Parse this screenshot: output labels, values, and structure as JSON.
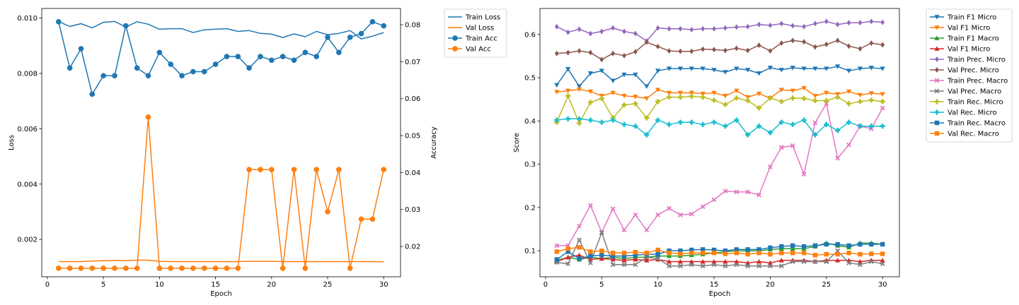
{
  "chart_data": [
    {
      "type": "line",
      "xlabel": "Epoch",
      "ylabel": "Loss",
      "ylabel_right": "Accuracy",
      "xlim": [
        -0.5,
        31.5
      ],
      "ylim": [
        0.00065,
        0.01035
      ],
      "ylim_right": [
        0.0118,
        0.0844
      ],
      "xticks": [
        0,
        5,
        10,
        15,
        20,
        25,
        30
      ],
      "yticks": [
        0.002,
        0.004,
        0.006,
        0.008,
        0.01
      ],
      "ytick_labels": [
        "0.002",
        "0.004",
        "0.006",
        "0.008",
        "0.010"
      ],
      "yticks_right": [
        0.02,
        0.03,
        0.04,
        0.05,
        0.06,
        0.07,
        0.08
      ],
      "ytick_labels_right": [
        "0.02",
        "0.03",
        "0.04",
        "0.05",
        "0.06",
        "0.07",
        "0.08"
      ],
      "legend_position": "outside-right",
      "x": [
        1,
        2,
        3,
        4,
        5,
        6,
        7,
        8,
        9,
        10,
        11,
        12,
        13,
        14,
        15,
        16,
        17,
        18,
        19,
        20,
        21,
        22,
        23,
        24,
        25,
        26,
        27,
        28,
        29,
        30
      ],
      "series": [
        {
          "name": "Train Loss",
          "axis": "left",
          "color": "#1f77b4",
          "marker": "none",
          "values": [
            0.00988,
            0.0097,
            0.0098,
            0.00965,
            0.00985,
            0.00988,
            0.00968,
            0.00987,
            0.00978,
            0.0096,
            0.00962,
            0.00962,
            0.00948,
            0.00958,
            0.0096,
            0.00962,
            0.00952,
            0.00955,
            0.00945,
            0.00942,
            0.0093,
            0.00943,
            0.00933,
            0.00952,
            0.0094,
            0.00945,
            0.00955,
            0.00925,
            0.00935,
            0.00948
          ]
        },
        {
          "name": "Val Loss",
          "axis": "left",
          "color": "#ff7f0e",
          "marker": "none",
          "values": [
            0.0012,
            0.0012,
            0.0012,
            0.00122,
            0.00123,
            0.00124,
            0.00123,
            0.00125,
            0.00125,
            0.00121,
            0.0012,
            0.0012,
            0.0012,
            0.0012,
            0.0012,
            0.0012,
            0.0012,
            0.00121,
            0.00121,
            0.00121,
            0.0012,
            0.0012,
            0.0012,
            0.0012,
            0.0012,
            0.0012,
            0.0012,
            0.0012,
            0.0012,
            0.00119
          ]
        },
        {
          "name": "Train Acc",
          "axis": "right",
          "color": "#1f77b4",
          "marker": "circle",
          "values": [
            0.0808,
            0.0683,
            0.0735,
            0.0612,
            0.0662,
            0.0662,
            0.0797,
            0.0683,
            0.0662,
            0.0725,
            0.0693,
            0.0662,
            0.0673,
            0.0673,
            0.0693,
            0.0714,
            0.0714,
            0.0683,
            0.0714,
            0.0704,
            0.0714,
            0.0704,
            0.0725,
            0.0714,
            0.0766,
            0.0725,
            0.0766,
            0.0776,
            0.0808,
            0.0797
          ]
        },
        {
          "name": "Val Acc",
          "axis": "right",
          "color": "#ff7f0e",
          "marker": "circle",
          "values": [
            0.0141,
            0.0141,
            0.0141,
            0.0141,
            0.0141,
            0.0141,
            0.0141,
            0.0141,
            0.055,
            0.0141,
            0.0141,
            0.0141,
            0.0141,
            0.0141,
            0.0141,
            0.0141,
            0.0141,
            0.0408,
            0.0408,
            0.0408,
            0.0141,
            0.0408,
            0.0141,
            0.0408,
            0.0294,
            0.0408,
            0.0141,
            0.0274,
            0.0274,
            0.0408
          ]
        }
      ]
    },
    {
      "type": "line",
      "xlabel": "Epoch",
      "ylabel": "Score",
      "xlim": [
        -0.5,
        31.5
      ],
      "ylim": [
        0.04,
        0.66
      ],
      "xticks": [
        0,
        5,
        10,
        15,
        20,
        25,
        30
      ],
      "yticks": [
        0.1,
        0.2,
        0.3,
        0.4,
        0.5,
        0.6
      ],
      "ytick_labels": [
        "0.1",
        "0.2",
        "0.3",
        "0.4",
        "0.5",
        "0.6"
      ],
      "legend_position": "outside-right",
      "x": [
        1,
        2,
        3,
        4,
        5,
        6,
        7,
        8,
        9,
        10,
        11,
        12,
        13,
        14,
        15,
        16,
        17,
        18,
        19,
        20,
        21,
        22,
        23,
        24,
        25,
        26,
        27,
        28,
        29,
        30
      ],
      "series": [
        {
          "name": "Train F1 Micro",
          "color": "#1f77b4",
          "marker": "tri-down",
          "values": [
            0.483,
            0.52,
            0.48,
            0.51,
            0.516,
            0.493,
            0.507,
            0.507,
            0.48,
            0.516,
            0.521,
            0.521,
            0.521,
            0.521,
            0.518,
            0.513,
            0.521,
            0.518,
            0.51,
            0.523,
            0.518,
            0.523,
            0.521,
            0.521,
            0.521,
            0.526,
            0.516,
            0.521,
            0.523,
            0.521
          ]
        },
        {
          "name": "Val F1 Micro",
          "color": "#ff7f0e",
          "marker": "tri-down",
          "values": [
            0.467,
            0.47,
            0.473,
            0.468,
            0.458,
            0.465,
            0.458,
            0.456,
            0.452,
            0.472,
            0.465,
            0.465,
            0.465,
            0.463,
            0.465,
            0.458,
            0.47,
            0.455,
            0.463,
            0.453,
            0.472,
            0.47,
            0.476,
            0.458,
            0.465,
            0.462,
            0.468,
            0.46,
            0.464,
            0.462
          ]
        },
        {
          "name": "Train F1 Macro",
          "color": "#2ca02c",
          "marker": "tri-up",
          "values": [
            0.078,
            0.085,
            0.08,
            0.085,
            0.082,
            0.085,
            0.082,
            0.085,
            0.085,
            0.088,
            0.088,
            0.088,
            0.09,
            0.092,
            0.095,
            0.098,
            0.1,
            0.1,
            0.1,
            0.103,
            0.105,
            0.105,
            0.105,
            0.11,
            0.118,
            0.112,
            0.108,
            0.118,
            0.118,
            0.115
          ]
        },
        {
          "name": "Val F1 Micro",
          "color": "#d62728",
          "marker": "tri-up",
          "values": [
            0.075,
            0.085,
            0.09,
            0.08,
            0.082,
            0.08,
            0.078,
            0.08,
            0.078,
            0.08,
            0.075,
            0.075,
            0.075,
            0.075,
            0.075,
            0.075,
            0.075,
            0.072,
            0.075,
            0.072,
            0.078,
            0.078,
            0.078,
            0.075,
            0.078,
            0.078,
            0.078,
            0.075,
            0.078,
            0.078
          ]
        },
        {
          "name": "Train Prec. Micro",
          "color": "#9467bd",
          "marker": "diamond",
          "values": [
            0.618,
            0.605,
            0.612,
            0.602,
            0.607,
            0.615,
            0.607,
            0.602,
            0.585,
            0.615,
            0.613,
            0.613,
            0.611,
            0.613,
            0.613,
            0.615,
            0.617,
            0.618,
            0.623,
            0.621,
            0.625,
            0.62,
            0.618,
            0.625,
            0.63,
            0.623,
            0.627,
            0.627,
            0.63,
            0.628
          ]
        },
        {
          "name": "Val Prec. Micro",
          "color": "#8c564b",
          "marker": "diamond",
          "values": [
            0.556,
            0.558,
            0.562,
            0.558,
            0.542,
            0.556,
            0.551,
            0.56,
            0.582,
            0.572,
            0.562,
            0.561,
            0.561,
            0.566,
            0.565,
            0.563,
            0.568,
            0.563,
            0.575,
            0.562,
            0.58,
            0.586,
            0.583,
            0.571,
            0.577,
            0.586,
            0.573,
            0.567,
            0.58,
            0.576
          ]
        },
        {
          "name": "Train Prec. Macro",
          "color": "#e377c2",
          "marker": "x-filled",
          "values": [
            0.112,
            0.112,
            0.157,
            0.205,
            0.143,
            0.197,
            0.148,
            0.183,
            0.148,
            0.183,
            0.198,
            0.183,
            0.185,
            0.202,
            0.218,
            0.238,
            0.236,
            0.236,
            0.229,
            0.294,
            0.339,
            0.343,
            0.277,
            0.396,
            0.44,
            0.314,
            0.345,
            0.388,
            0.382,
            0.43
          ]
        },
        {
          "name": "Val Prec. Macro",
          "color": "#7f7f7f",
          "marker": "x-filled",
          "values": [
            0.073,
            0.07,
            0.125,
            0.072,
            0.142,
            0.068,
            0.068,
            0.068,
            0.085,
            0.082,
            0.065,
            0.065,
            0.068,
            0.065,
            0.068,
            0.065,
            0.068,
            0.065,
            0.065,
            0.065,
            0.065,
            0.075,
            0.075,
            0.075,
            0.075,
            0.1,
            0.072,
            0.068,
            0.075,
            0.07
          ]
        },
        {
          "name": "Train Rec. Micro",
          "color": "#bcbd22",
          "marker": "plus",
          "values": [
            0.397,
            0.458,
            0.395,
            0.443,
            0.452,
            0.407,
            0.437,
            0.44,
            0.407,
            0.445,
            0.455,
            0.455,
            0.457,
            0.455,
            0.448,
            0.438,
            0.453,
            0.447,
            0.43,
            0.453,
            0.445,
            0.453,
            0.452,
            0.447,
            0.447,
            0.455,
            0.44,
            0.445,
            0.448,
            0.445
          ]
        },
        {
          "name": "Val Rec. Micro",
          "color": "#17becf",
          "marker": "plus",
          "values": [
            0.402,
            0.405,
            0.405,
            0.402,
            0.397,
            0.402,
            0.392,
            0.388,
            0.368,
            0.402,
            0.392,
            0.397,
            0.397,
            0.392,
            0.397,
            0.388,
            0.402,
            0.368,
            0.388,
            0.373,
            0.397,
            0.392,
            0.402,
            0.368,
            0.392,
            0.378,
            0.397,
            0.388,
            0.388,
            0.388
          ]
        },
        {
          "name": "Train Rec. Macro",
          "color": "#1f77b4",
          "marker": "square",
          "values": [
            0.08,
            0.098,
            0.082,
            0.088,
            0.09,
            0.088,
            0.088,
            0.09,
            0.092,
            0.092,
            0.1,
            0.1,
            0.102,
            0.103,
            0.102,
            0.1,
            0.103,
            0.103,
            0.103,
            0.107,
            0.11,
            0.112,
            0.11,
            0.112,
            0.115,
            0.115,
            0.112,
            0.115,
            0.115,
            0.115
          ]
        },
        {
          "name": "Val Rec. Macro",
          "color": "#ff7f0e",
          "marker": "square",
          "values": [
            0.098,
            0.105,
            0.108,
            0.098,
            0.1,
            0.095,
            0.095,
            0.097,
            0.095,
            0.102,
            0.095,
            0.093,
            0.095,
            0.095,
            0.095,
            0.093,
            0.095,
            0.092,
            0.095,
            0.092,
            0.095,
            0.095,
            0.095,
            0.09,
            0.092,
            0.092,
            0.095,
            0.092,
            0.093,
            0.093
          ]
        }
      ]
    }
  ]
}
